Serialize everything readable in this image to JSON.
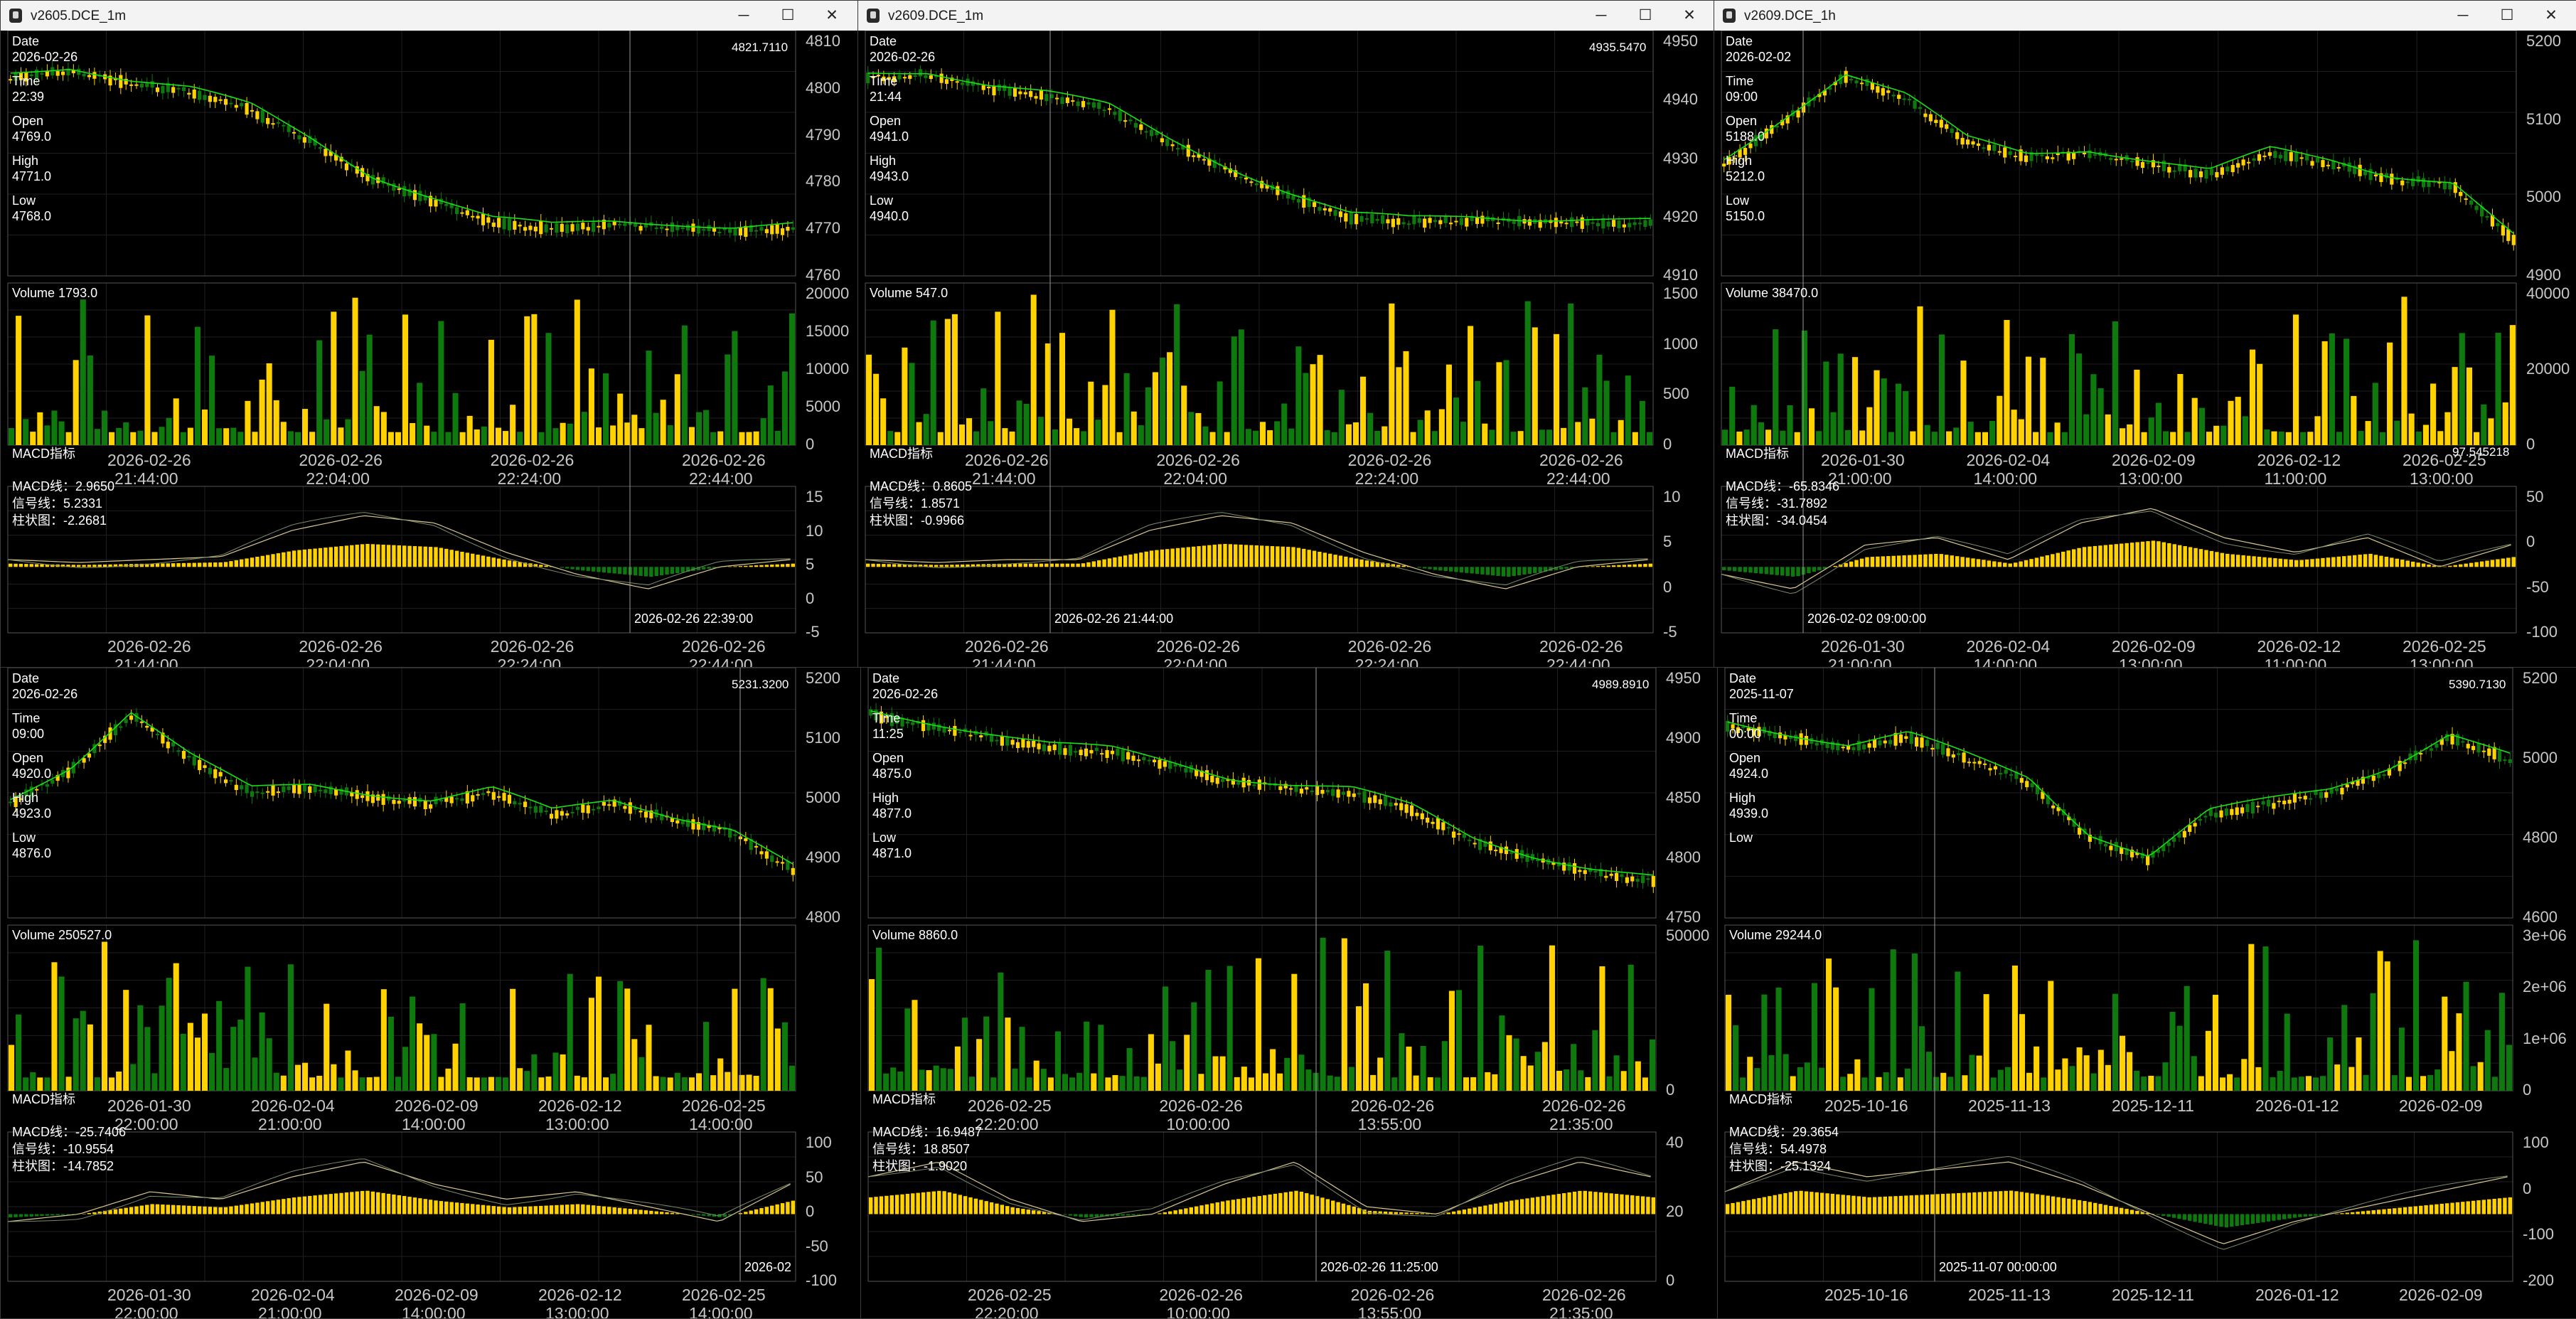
{
  "colors": {
    "bull": "#ffd200",
    "bear": "#0e7a0e",
    "ma": "#18e018",
    "axis": "#c8c8c8",
    "text": "#ffffff"
  },
  "windows": [
    {
      "id": "w1",
      "title": "v2605.DCE_1m",
      "info": {
        "date_label": "Date",
        "date": "2026-02-26",
        "time_label": "Time",
        "time": "22:39",
        "open_label": "Open",
        "open": "4769.0",
        "high_label": "High",
        "high": "4771.0",
        "low_label": "Low",
        "low": "4768.0"
      },
      "price_readout": "4821.7110",
      "volume_label": "Volume 1793.0",
      "macd_title": "MACD指标",
      "macd_line": "MACD线：2.9650",
      "signal_line": "信号线：5.2331",
      "histogram": "柱状图：-2.2681",
      "macd_readout": "",
      "crosshair_label": "2026-02-26 22:39:00",
      "price_ticks": [
        "4810",
        "4800",
        "4790",
        "4780",
        "4770",
        "4760"
      ],
      "volume_ticks": [
        "20000",
        "15000",
        "10000",
        "5000",
        "0"
      ],
      "macd_ticks": [
        "15",
        "10",
        "5",
        "0",
        "-5"
      ],
      "x_ticks": [
        [
          "2026-02-26",
          "21:44:00"
        ],
        [
          "2026-02-26",
          "22:04:00"
        ],
        [
          "2026-02-26",
          "22:24:00"
        ],
        [
          "2026-02-26",
          "22:44:00"
        ]
      ]
    },
    {
      "id": "w2",
      "title": "v2609.DCE_1m",
      "info": {
        "date_label": "Date",
        "date": "2026-02-26",
        "time_label": "Time",
        "time": "21:44",
        "open_label": "Open",
        "open": "4941.0",
        "high_label": "High",
        "high": "4943.0",
        "low_label": "Low",
        "low": "4940.0"
      },
      "price_readout": "4935.5470",
      "volume_label": "Volume 547.0",
      "macd_title": "MACD指标",
      "macd_line": "MACD线：0.8605",
      "signal_line": "信号线：1.8571",
      "histogram": "柱状图：-0.9966",
      "macd_readout": "",
      "crosshair_label": "2026-02-26 21:44:00",
      "price_ticks": [
        "4950",
        "4940",
        "4930",
        "4920",
        "4910"
      ],
      "volume_ticks": [
        "1500",
        "1000",
        "500",
        "0"
      ],
      "macd_ticks": [
        "10",
        "5",
        "0",
        "-5"
      ],
      "x_ticks": [
        [
          "2026-02-26",
          "21:44:00"
        ],
        [
          "2026-02-26",
          "22:04:00"
        ],
        [
          "2026-02-26",
          "22:24:00"
        ],
        [
          "2026-02-26",
          "22:44:00"
        ]
      ]
    },
    {
      "id": "w3",
      "title": "v2609.DCE_1h",
      "info": {
        "date_label": "Date",
        "date": "2026-02-02",
        "time_label": "Time",
        "time": "09:00",
        "open_label": "Open",
        "open": "5188.0",
        "high_label": "High",
        "high": "5212.0",
        "low_label": "Low",
        "low": "5150.0"
      },
      "price_readout": "",
      "volume_label": "Volume 38470.0",
      "macd_title": "MACD指标",
      "macd_line": "MACD线：-65.8346",
      "signal_line": "信号线：-31.7892",
      "histogram": "柱状图：-34.0454",
      "macd_readout": "97.545218",
      "crosshair_label": "2026-02-02 09:00:00",
      "price_ticks": [
        "5200",
        "5100",
        "5000",
        "4900"
      ],
      "volume_ticks": [
        "40000",
        "20000",
        "0"
      ],
      "macd_ticks": [
        "50",
        "0",
        "-50",
        "-100"
      ],
      "x_ticks": [
        [
          "2026-01-30",
          "21:00:00"
        ],
        [
          "2026-02-04",
          "14:00:00"
        ],
        [
          "2026-02-09",
          "13:00:00"
        ],
        [
          "2026-02-12",
          "11:00:00"
        ],
        [
          "2026-02-25",
          "13:00:00"
        ]
      ]
    },
    {
      "id": "w4",
      "title": "",
      "info": {
        "date_label": "Date",
        "date": "2026-02-26",
        "time_label": "Time",
        "time": "09:00",
        "open_label": "Open",
        "open": "4920.0",
        "high_label": "High",
        "high": "4923.0",
        "low_label": "Low",
        "low": "4876.0"
      },
      "price_readout": "5231.3200",
      "volume_label": "Volume 250527.0",
      "macd_title": "MACD指标",
      "macd_line": "MACD线：-25.7406",
      "signal_line": "信号线：-10.9554",
      "histogram": "柱状图：-14.7852",
      "macd_readout": "",
      "crosshair_label": "2026-02",
      "price_ticks": [
        "5200",
        "5100",
        "5000",
        "4900",
        "4800"
      ],
      "volume_ticks": [],
      "macd_ticks": [
        "100",
        "50",
        "0",
        "-50",
        "-100"
      ],
      "x_ticks": [
        [
          "2026-01-30",
          "22:00:00"
        ],
        [
          "2026-02-04",
          "21:00:00"
        ],
        [
          "2026-02-09",
          "14:00:00"
        ],
        [
          "2026-02-12",
          "13:00:00"
        ],
        [
          "2026-02-25",
          "14:00:00"
        ]
      ]
    },
    {
      "id": "w5",
      "title": "",
      "info": {
        "date_label": "Date",
        "date": "2026-02-26",
        "time_label": "Time",
        "time": "11:25",
        "open_label": "Open",
        "open": "4875.0",
        "high_label": "High",
        "high": "4877.0",
        "low_label": "Low",
        "low": "4871.0"
      },
      "price_readout": "4989.8910",
      "volume_label": "Volume 8860.0",
      "macd_title": "MACD指标",
      "macd_line": "MACD线：16.9487",
      "signal_line": "信号线：18.8507",
      "histogram": "柱状图：-1.9020",
      "macd_readout": "",
      "crosshair_label": "2026-02-26 11:25:00",
      "price_ticks": [
        "4950",
        "4900",
        "4850",
        "4800",
        "4750"
      ],
      "volume_ticks": [
        "50000",
        "0"
      ],
      "macd_ticks": [
        "40",
        "20",
        "0"
      ],
      "x_ticks": [
        [
          "2026-02-25",
          "22:20:00"
        ],
        [
          "2026-02-26",
          "10:00:00"
        ],
        [
          "2026-02-26",
          "13:55:00"
        ],
        [
          "2026-02-26",
          "21:35:00"
        ]
      ]
    },
    {
      "id": "w6",
      "title": "",
      "info": {
        "date_label": "Date",
        "date": "2025-11-07",
        "time_label": "Time",
        "time": "00:00",
        "open_label": "Open",
        "open": "4924.0",
        "high_label": "High",
        "high": "4939.0",
        "low_label": "Low",
        "low": ""
      },
      "price_readout": "5390.7130",
      "volume_label": "Volume 29244.0",
      "macd_title": "MACD指标",
      "macd_line": "MACD线：29.3654",
      "signal_line": "信号线：54.4978",
      "histogram": "柱状图：-25.1324",
      "macd_readout": "",
      "crosshair_label": "2025-11-07 00:00:00",
      "price_ticks": [
        "5200",
        "5000",
        "4800",
        "4600"
      ],
      "volume_ticks": [
        "3e+06",
        "2e+06",
        "1e+06",
        "0"
      ],
      "macd_ticks": [
        "100",
        "0",
        "-100",
        "-200"
      ],
      "x_ticks": [
        [
          "2025-10-16",
          ""
        ],
        [
          "2025-11-13",
          ""
        ],
        [
          "2025-12-11",
          ""
        ],
        [
          "2026-01-12",
          ""
        ],
        [
          "2026-02-09",
          ""
        ]
      ]
    }
  ]
}
